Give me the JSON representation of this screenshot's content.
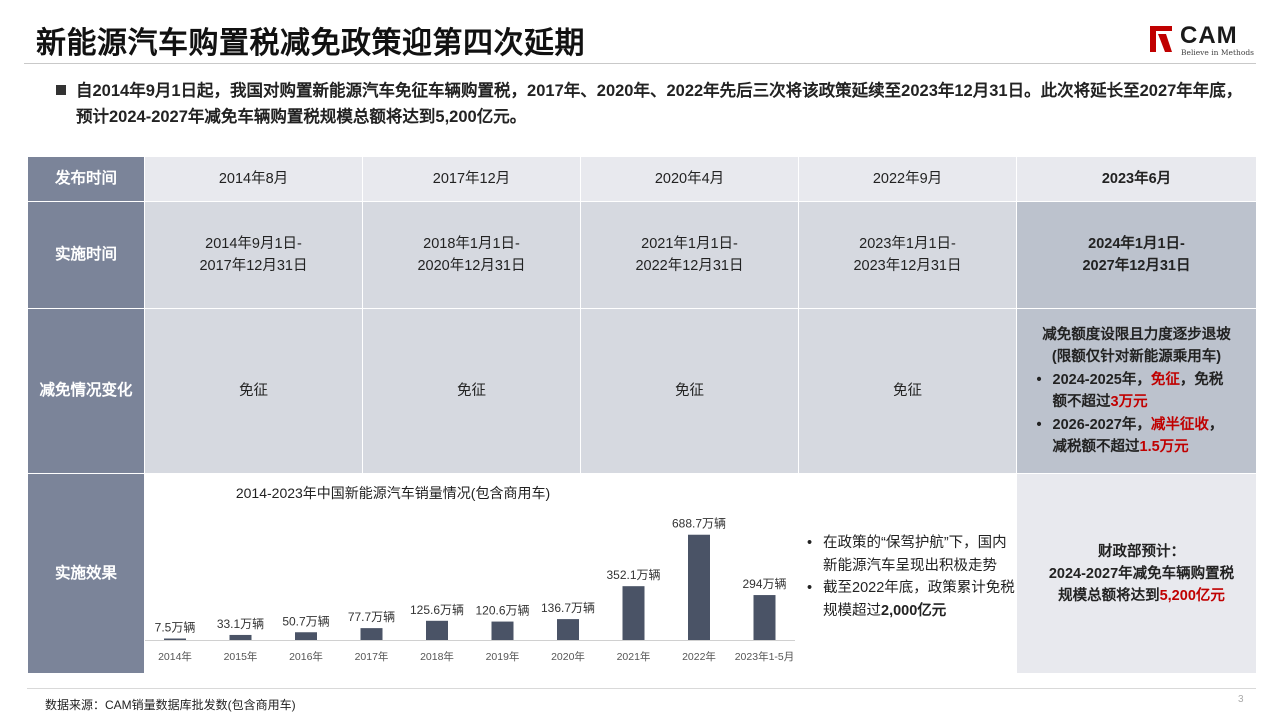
{
  "title": "新能源汽车购置税减免政策迎第四次延期",
  "logo": {
    "text": "CAM",
    "tagline": "Believe in Methods",
    "color": "#c00000"
  },
  "intro": "自2014年9月1日起，我国对购置新能源汽车免征车辆购置税，2017年、2020年、2022年先后三次将该政策延续至2023年12月31日。此次将延长至2027年年底，预计2024-2027年减免车辆购置税规模总额将达到5,200亿元。",
  "table": {
    "row_labels": [
      "发布时间",
      "实施时间",
      "减免情况变化",
      "实施效果"
    ],
    "publish": [
      "2014年8月",
      "2017年12月",
      "2020年4月",
      "2022年9月",
      "2023年6月"
    ],
    "period": [
      [
        "2014年9月1日-",
        "2017年12月31日"
      ],
      [
        "2018年1月1日-",
        "2020年12月31日"
      ],
      [
        "2021年1月1日-",
        "2022年12月31日"
      ],
      [
        "2023年1月1日-",
        "2023年12月31日"
      ],
      [
        "2024年1月1日-",
        "2027年12月31日"
      ]
    ],
    "change": [
      "免征",
      "免征",
      "免征",
      "免征"
    ],
    "latest_change": {
      "title_1": "减免额度设限且力度逐步退坡",
      "title_2": "(限额仅针对新能源乘用车)",
      "item1_pre": "2024-2025年，",
      "item1_red": "免征",
      "item1_mid": "，免税额不超过",
      "item1_red2": "3万元",
      "item2_pre": "2026-2027年，",
      "item2_red": "减半征收",
      "item2_mid": "，减税额不超过",
      "item2_red2": "1.5万元"
    },
    "effect": {
      "label": "财政部预计：",
      "line2": "2024-2027年减免车辆购置税",
      "line3_pre": "规模总额将达到",
      "line3_red": "5,200亿元"
    }
  },
  "notes": [
    "在政策的“保驾护航”下，国内新能源汽车呈现出积极走势",
    {
      "pre": "截至2022年底，政策累计免税规模超过",
      "bold": "2,000亿元"
    }
  ],
  "chart_data": {
    "type": "bar",
    "title": "2014-2023年中国新能源汽车销量情况(包含商用车)",
    "categories": [
      "2014年",
      "2015年",
      "2016年",
      "2017年",
      "2018年",
      "2019年",
      "2020年",
      "2021年",
      "2022年",
      "2023年1-5月"
    ],
    "values": [
      7.5,
      33.1,
      50.7,
      77.7,
      125.6,
      120.6,
      136.7,
      352.1,
      688.7,
      294
    ],
    "labels": [
      "7.5万辆",
      "33.1万辆",
      "50.7万辆",
      "77.7万辆",
      "125.6万辆",
      "120.6万辆",
      "136.7万辆",
      "352.1万辆",
      "688.7万辆",
      "294万辆"
    ],
    "unit": "万辆",
    "bar_color": "#4a5366",
    "ylim": [
      0,
      700
    ],
    "grid": false,
    "legend": "none"
  },
  "source": "数据来源：CAM销量数据库批发数(包含商用车)",
  "page": "3"
}
